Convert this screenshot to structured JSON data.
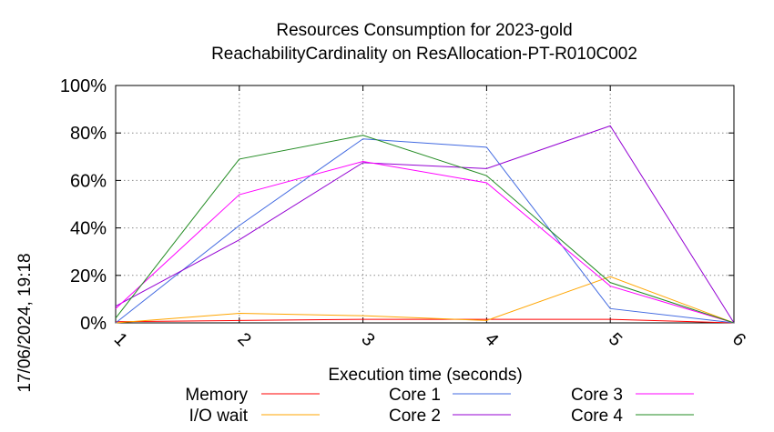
{
  "chart_data": {
    "type": "line",
    "title_lines": [
      "Resources Consumption for 2023-gold",
      "ReachabilityCardinality on ResAllocation-PT-R010C002"
    ],
    "xlabel": "Execution time (seconds)",
    "ylabel": "",
    "side_label": "17/06/2024, 19:18",
    "x": [
      1,
      2,
      3,
      4,
      5,
      6
    ],
    "xlim": [
      1,
      6
    ],
    "ylim": [
      0,
      100
    ],
    "y_ticks": [
      {
        "value": 0,
        "label": "0%"
      },
      {
        "value": 20,
        "label": "20%"
      },
      {
        "value": 40,
        "label": "40%"
      },
      {
        "value": 60,
        "label": "60%"
      },
      {
        "value": 80,
        "label": "80%"
      },
      {
        "value": 100,
        "label": "100%"
      }
    ],
    "x_ticks": [
      {
        "value": 1,
        "label": "1"
      },
      {
        "value": 2,
        "label": "2"
      },
      {
        "value": 3,
        "label": "3"
      },
      {
        "value": 4,
        "label": "4"
      },
      {
        "value": 5,
        "label": "5"
      },
      {
        "value": 6,
        "label": "6"
      }
    ],
    "grid": true,
    "legend_position": "bottom",
    "series": [
      {
        "name": "Memory",
        "color": "#ff0000",
        "values": [
          0.5,
          1.0,
          1.5,
          1.5,
          1.5,
          0
        ]
      },
      {
        "name": "I/O wait",
        "color": "#ffa500",
        "values": [
          0,
          4,
          3,
          1,
          19.5,
          0
        ]
      },
      {
        "name": "Core 1",
        "color": "#4169e1",
        "values": [
          0,
          41,
          77.5,
          74,
          6,
          0
        ]
      },
      {
        "name": "Core 2",
        "color": "#9400d3",
        "values": [
          7,
          35,
          67.5,
          65,
          83,
          0
        ]
      },
      {
        "name": "Core 3",
        "color": "#ff00ff",
        "values": [
          6,
          54,
          68,
          59,
          15.5,
          0
        ]
      },
      {
        "name": "Core 4",
        "color": "#228b22",
        "values": [
          2,
          69,
          79,
          62,
          17,
          0
        ]
      }
    ]
  }
}
